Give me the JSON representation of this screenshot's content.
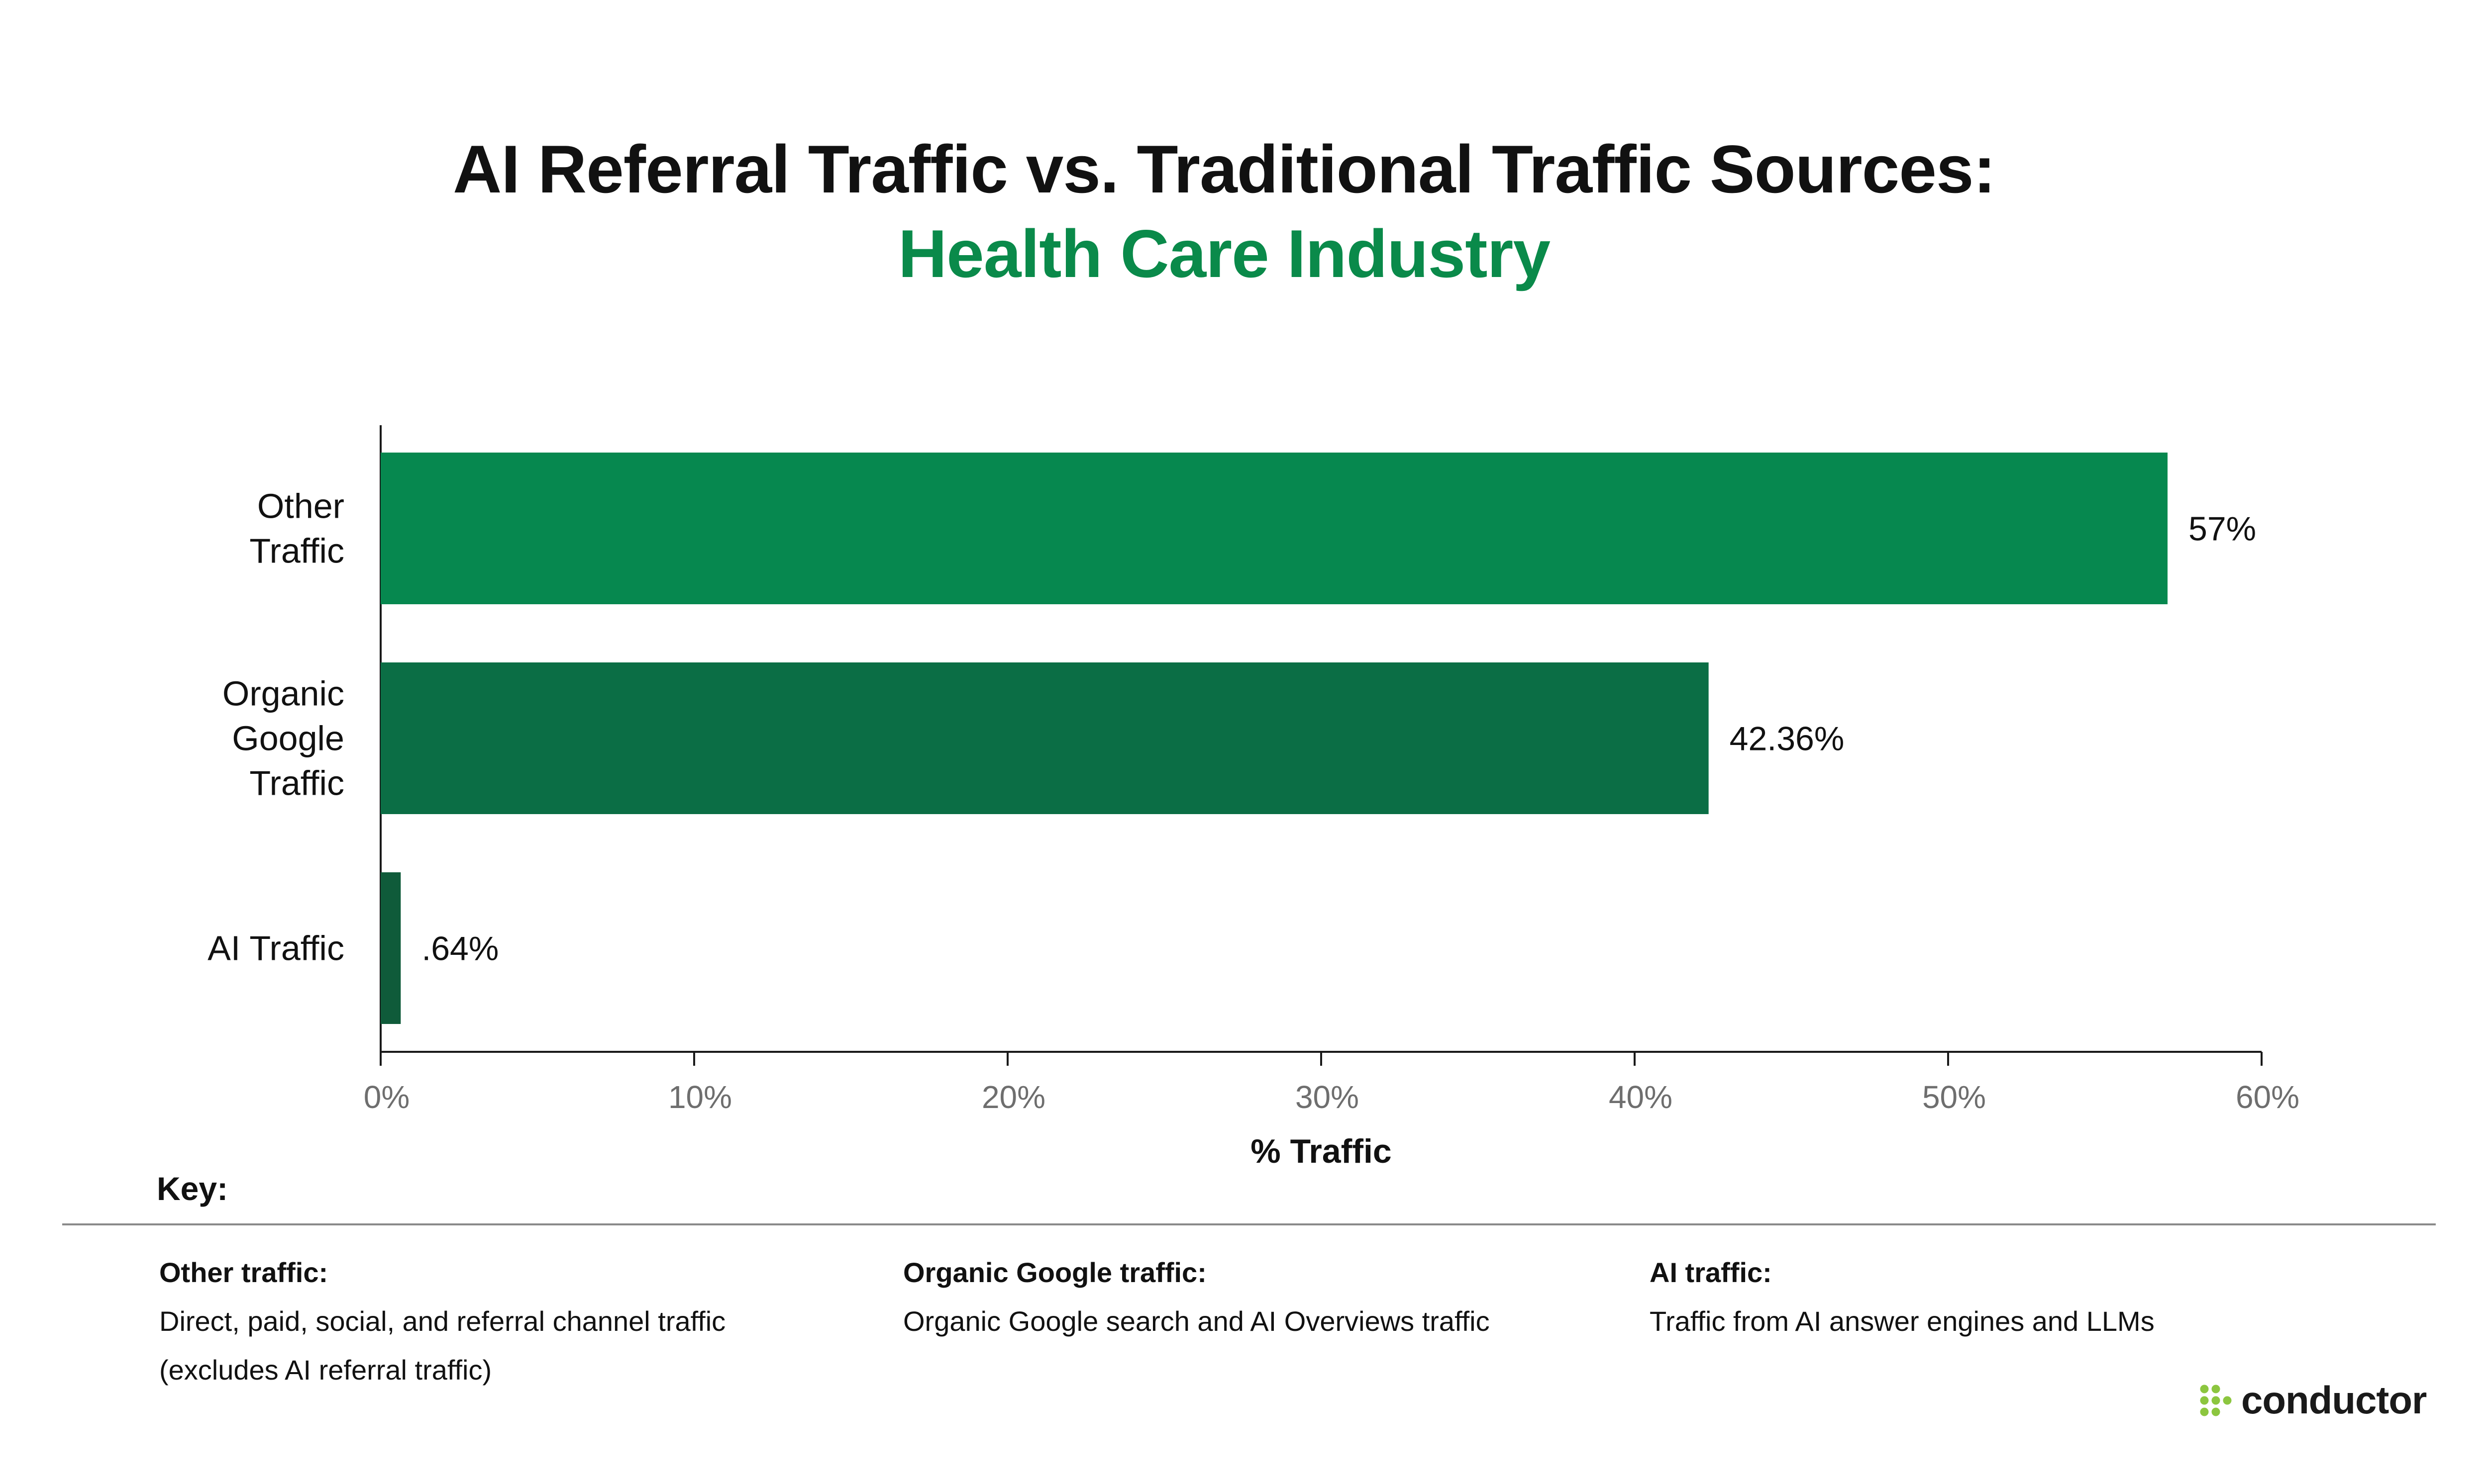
{
  "header": {
    "title": "AI Referral Traffic vs. Traditional Traffic Sources:",
    "subtitle": "Health Care Industry"
  },
  "chart_data": {
    "type": "bar",
    "orientation": "horizontal",
    "categories": [
      "Other Traffic",
      "Organic Google Traffic",
      "AI Traffic"
    ],
    "category_label_lines": [
      [
        "Other",
        "Traffic"
      ],
      [
        "Organic",
        "Google",
        "Traffic"
      ],
      [
        "AI Traffic"
      ]
    ],
    "values": [
      57,
      42.36,
      0.64
    ],
    "value_labels": [
      "57%",
      "42.36%",
      ".64%"
    ],
    "colors": [
      "#06884f",
      "#0b6e45",
      "#0f5b3a"
    ],
    "xlabel": "% Traffic",
    "ylabel": "",
    "xlim": [
      0,
      60
    ],
    "xticks": [
      0,
      10,
      20,
      30,
      40,
      50,
      60
    ],
    "xtick_labels": [
      "0%",
      "10%",
      "20%",
      "30%",
      "40%",
      "50%",
      "60%"
    ],
    "grid": false,
    "legend": "none"
  },
  "key": {
    "title": "Key:",
    "items": [
      {
        "name": "Other traffic:",
        "desc_lines": [
          "Direct, paid, social, and referral channel traffic",
          "(excludes AI referral traffic)"
        ]
      },
      {
        "name": "Organic Google traffic:",
        "desc_lines": [
          "Organic Google search and AI Overviews traffic"
        ]
      },
      {
        "name": "AI traffic:",
        "desc_lines": [
          "Traffic from AI answer engines and LLMs"
        ]
      }
    ]
  },
  "branding": {
    "logo_text": "conductor",
    "logo_icon": "conductor-dots-icon",
    "logo_icon_color": "#8cc63f"
  }
}
